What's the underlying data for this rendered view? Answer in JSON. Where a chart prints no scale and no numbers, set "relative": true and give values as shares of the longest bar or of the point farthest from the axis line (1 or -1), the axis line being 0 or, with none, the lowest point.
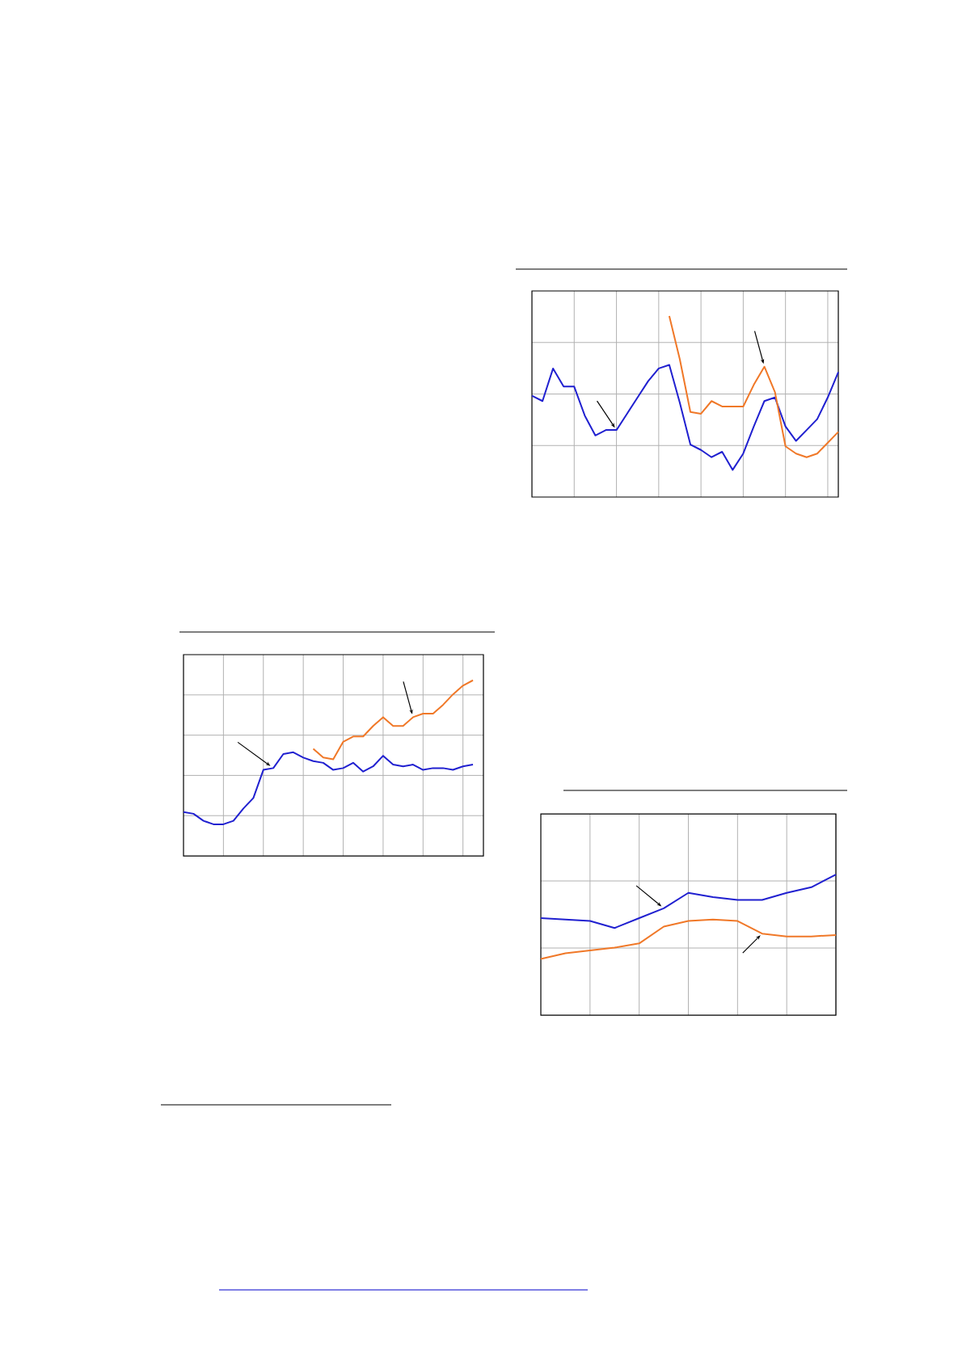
{
  "chart_data": [
    {
      "type": "line",
      "relative": true,
      "grid": true,
      "categories": [
        null,
        null,
        null,
        null,
        null,
        null,
        null,
        null,
        null,
        null,
        null,
        null,
        null,
        null,
        null,
        null,
        null,
        null,
        null,
        null,
        null,
        null,
        null,
        null,
        null,
        null,
        null,
        null,
        null,
        null
      ],
      "series": [
        {
          "color": "#2020d0",
          "values": [
            0.56,
            0.53,
            0.71,
            0.61,
            0.61,
            0.45,
            0.34,
            0.37,
            0.37,
            0.46,
            0.55,
            0.64,
            0.71,
            0.73,
            0.52,
            0.29,
            0.26,
            0.22,
            0.25,
            0.15,
            0.24,
            0.39,
            0.53,
            0.55,
            0.39,
            0.31,
            0.37,
            0.43,
            0.55,
            0.69
          ]
        },
        {
          "color": "#f07828",
          "values": [
            null,
            null,
            null,
            null,
            null,
            null,
            null,
            null,
            null,
            null,
            null,
            null,
            null,
            1,
            0.76,
            0.47,
            0.46,
            0.53,
            0.5,
            0.5,
            0.5,
            0.62,
            0.72,
            0.58,
            0.28,
            0.24,
            0.22,
            0.24,
            0.3,
            0.36
          ]
        }
      ]
    },
    {
      "type": "line",
      "relative": true,
      "grid": true,
      "categories": [
        null,
        null,
        null,
        null,
        null,
        null,
        null,
        null,
        null,
        null,
        null,
        null,
        null,
        null,
        null,
        null,
        null,
        null,
        null,
        null,
        null,
        null,
        null,
        null,
        null,
        null,
        null,
        null,
        null,
        null
      ],
      "series": [
        {
          "color": "#2020d0",
          "values": [
            0.25,
            0.24,
            0.2,
            0.18,
            0.18,
            0.2,
            0.27,
            0.33,
            0.49,
            0.5,
            0.58,
            0.59,
            0.56,
            0.54,
            0.53,
            0.49,
            0.5,
            0.53,
            0.48,
            0.51,
            0.57,
            0.52,
            0.51,
            0.52,
            0.49,
            0.5,
            0.5,
            0.49,
            0.51,
            0.52
          ]
        },
        {
          "color": "#f07828",
          "values": [
            null,
            null,
            null,
            null,
            null,
            null,
            null,
            null,
            null,
            null,
            null,
            null,
            null,
            0.61,
            0.56,
            0.55,
            0.65,
            0.68,
            0.68,
            0.74,
            0.79,
            0.74,
            0.74,
            0.79,
            0.81,
            0.81,
            0.86,
            0.92,
            0.97,
            1
          ]
        }
      ]
    },
    {
      "type": "line",
      "relative": true,
      "grid": true,
      "categories": [
        null,
        null,
        null,
        null,
        null,
        null,
        null,
        null,
        null,
        null,
        null,
        null,
        null
      ],
      "series": [
        {
          "color": "#2020d0",
          "values": [
            0.69,
            0.68,
            0.67,
            0.62,
            0.69,
            0.76,
            0.87,
            0.84,
            0.82,
            0.82,
            0.87,
            0.91,
            1
          ]
        },
        {
          "color": "#f07828",
          "values": [
            0.4,
            0.44,
            0.46,
            0.48,
            0.51,
            0.63,
            0.67,
            0.68,
            0.67,
            0.58,
            0.56,
            0.56,
            0.57
          ]
        }
      ]
    }
  ]
}
